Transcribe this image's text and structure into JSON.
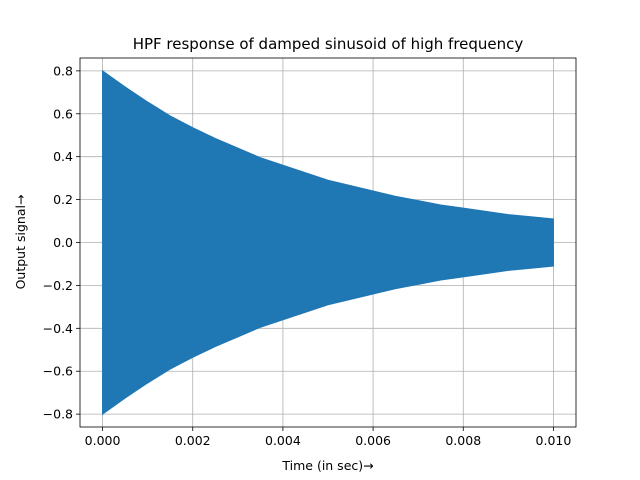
{
  "chart_data": {
    "type": "area",
    "title": "HPF response of damped sinusoid of high frequency",
    "xlabel": "Time (in sec)→",
    "ylabel": "Output signal→",
    "xlim": [
      -0.0005,
      0.0105
    ],
    "ylim": [
      -0.86,
      0.86
    ],
    "xticks": [
      0.0,
      0.002,
      0.004,
      0.006,
      0.008,
      0.01
    ],
    "xtick_labels": [
      "0.000",
      "0.002",
      "0.004",
      "0.006",
      "0.008",
      "0.010"
    ],
    "yticks": [
      -0.8,
      -0.6,
      -0.4,
      -0.2,
      0.0,
      0.2,
      0.4,
      0.6,
      0.8
    ],
    "ytick_labels": [
      "−0.8",
      "−0.6",
      "−0.4",
      "−0.2",
      "0.0",
      "0.2",
      "0.4",
      "0.6",
      "0.8"
    ],
    "grid": true,
    "color": "#1f77b4",
    "series": [
      {
        "x": [
          0.0,
          0.0005,
          0.001,
          0.0015,
          0.002,
          0.0025,
          0.003,
          0.0035,
          0.004,
          0.0045,
          0.005,
          0.0055,
          0.006,
          0.0065,
          0.007,
          0.0075,
          0.008,
          0.0085,
          0.009,
          0.0095,
          0.01
        ],
        "upper": [
          0.8,
          0.725,
          0.655,
          0.59,
          0.535,
          0.485,
          0.44,
          0.395,
          0.36,
          0.325,
          0.29,
          0.265,
          0.24,
          0.215,
          0.195,
          0.175,
          0.16,
          0.145,
          0.13,
          0.12,
          0.11
        ],
        "lower": [
          -0.8,
          -0.725,
          -0.655,
          -0.59,
          -0.535,
          -0.485,
          -0.44,
          -0.395,
          -0.36,
          -0.325,
          -0.29,
          -0.265,
          -0.24,
          -0.215,
          -0.195,
          -0.175,
          -0.16,
          -0.145,
          -0.13,
          -0.12,
          -0.11
        ]
      }
    ]
  }
}
